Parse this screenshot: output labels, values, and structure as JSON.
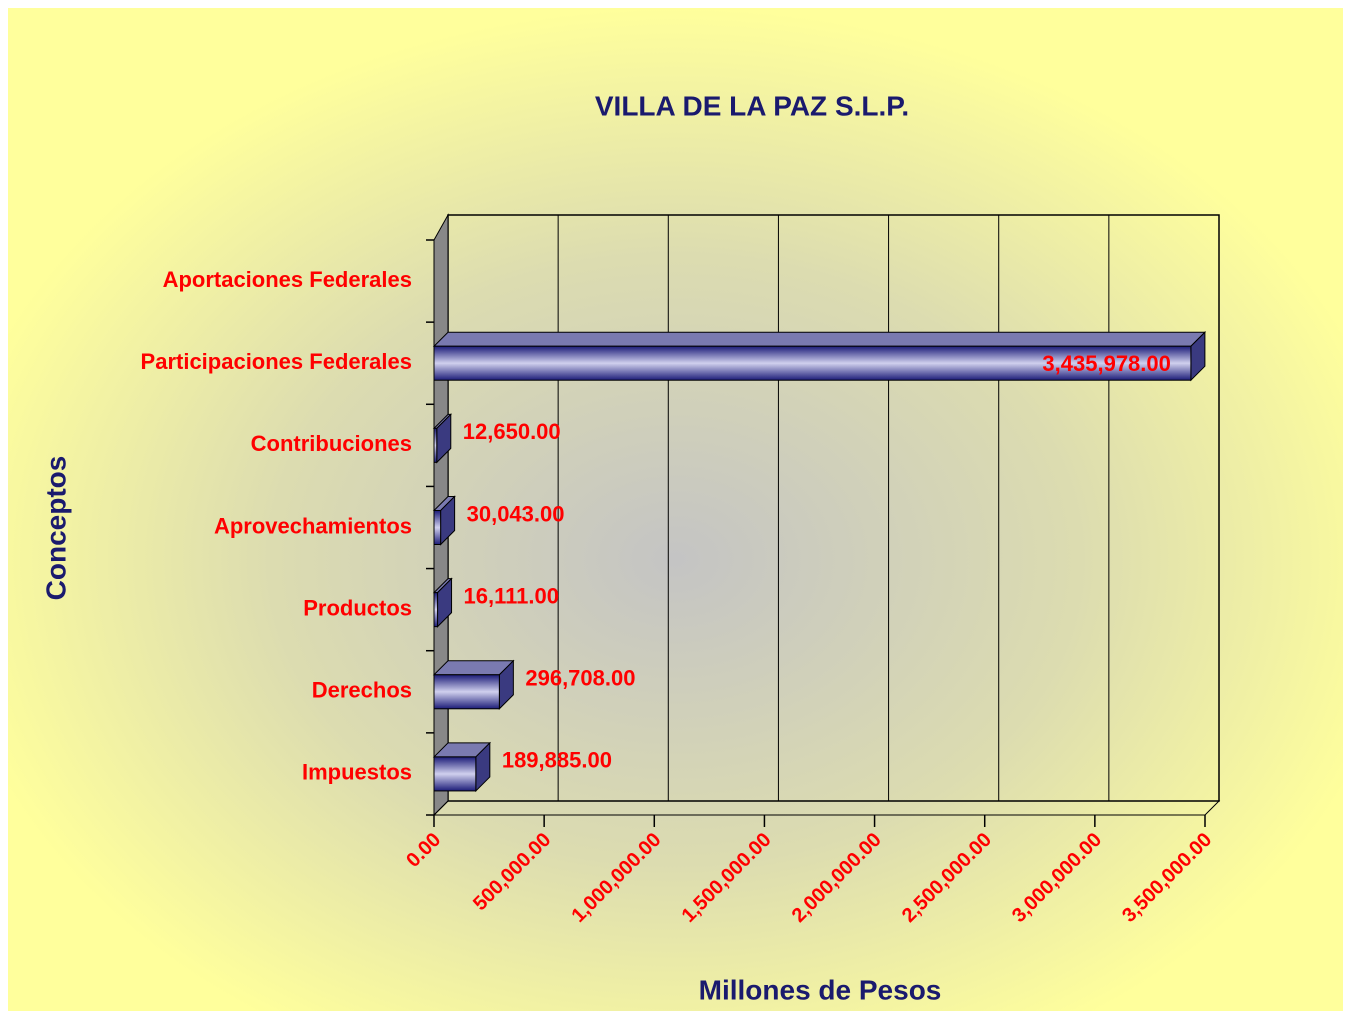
{
  "chart_data": {
    "type": "hbar3d",
    "title": "VILLA DE LA PAZ S.L.P.",
    "x_label": "Millones de Pesos",
    "y_label": "Conceptos",
    "categories": [
      "Aportaciones Federales",
      "Participaciones Federales",
      "Contribuciones",
      "Aprovechamientos",
      "Productos",
      "Derechos",
      "Impuestos"
    ],
    "values": [
      null,
      3435978,
      12650,
      30043,
      16111,
      296708,
      189885
    ],
    "value_labels": [
      null,
      "3,435,978.00",
      "12,650.00",
      "30,043.00",
      "16,111.00",
      "296,708.00",
      "189,885.00"
    ],
    "color": "#1c1c78",
    "xlim": [
      0,
      3500000
    ],
    "xticks": [
      {
        "value": 0,
        "label": "0.00"
      },
      {
        "value": 500000,
        "label": "500,000.00"
      },
      {
        "value": 1000000,
        "label": "1,000,000.00"
      },
      {
        "value": 1500000,
        "label": "1,500,000.00"
      },
      {
        "value": 2000000,
        "label": "2,000,000.00"
      },
      {
        "value": 2500000,
        "label": "2,500,000.00"
      },
      {
        "value": 3000000,
        "label": "3,000,000.00"
      },
      {
        "value": 3500000,
        "label": "3,500,000.00"
      }
    ],
    "grid": true
  }
}
